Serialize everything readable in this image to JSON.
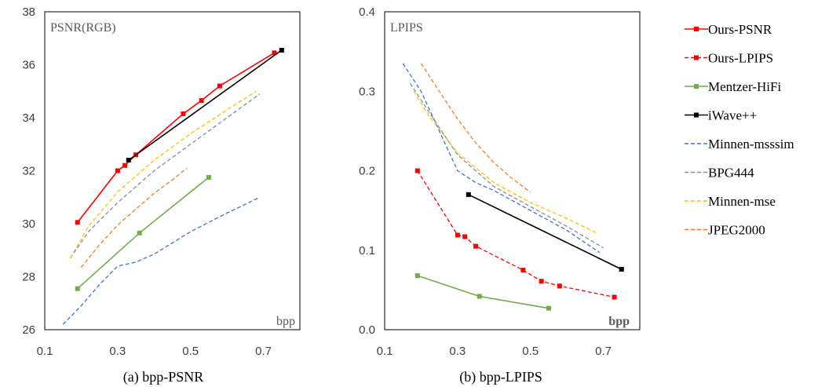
{
  "chart_data": [
    {
      "type": "line",
      "inner_label": "PSNR(RGB)",
      "xlabel": "bpp",
      "caption": "(a) bpp-PSNR",
      "xlim": [
        0.1,
        0.8
      ],
      "ylim": [
        26,
        38
      ],
      "xticks": [
        "0.1",
        "0.3",
        "0.5",
        "0.7"
      ],
      "xtick_values": [
        0.1,
        0.3,
        0.5,
        0.7
      ],
      "yticks": [
        "26",
        "28",
        "30",
        "32",
        "34",
        "36",
        "38"
      ],
      "ytick_values": [
        26,
        28,
        30,
        32,
        34,
        36,
        38
      ],
      "grid": false,
      "series": [
        {
          "name": "Ours-PSNR",
          "color": "#ff0000",
          "style": "solid",
          "marker": true,
          "x": [
            0.19,
            0.3,
            0.32,
            0.35,
            0.48,
            0.53,
            0.58,
            0.73
          ],
          "y": [
            30.05,
            32.0,
            32.2,
            32.6,
            34.15,
            34.65,
            35.2,
            36.45
          ]
        },
        {
          "name": "Ours-LPIPS",
          "color": "#ff0000",
          "style": "dashed",
          "marker": true,
          "x": [],
          "y": []
        },
        {
          "name": "Mentzer-HiFi",
          "color": "#70ad47",
          "style": "solid",
          "marker": true,
          "x": [
            0.19,
            0.36,
            0.55
          ],
          "y": [
            27.55,
            29.65,
            31.75
          ]
        },
        {
          "name": "iWave++",
          "color": "#000000",
          "style": "solid",
          "marker": true,
          "x": [
            0.33,
            0.75
          ],
          "y": [
            32.4,
            36.55
          ]
        },
        {
          "name": "Minnen-msssim",
          "color": "#4472c4",
          "style": "dashed",
          "marker": false,
          "x": [
            0.15,
            0.2,
            0.25,
            0.3,
            0.35,
            0.4,
            0.5,
            0.6,
            0.69
          ],
          "y": [
            26.2,
            26.9,
            27.7,
            28.4,
            28.55,
            28.85,
            29.7,
            30.4,
            31.0
          ]
        },
        {
          "name": "BPG444",
          "color": "#7f8fa6",
          "style": "dashed",
          "marker": false,
          "x": [
            0.17,
            0.22,
            0.3,
            0.4,
            0.5,
            0.6,
            0.69
          ],
          "y": [
            28.7,
            29.7,
            30.8,
            32.0,
            33.0,
            34.0,
            34.9
          ]
        },
        {
          "name": "Minnen-mse",
          "color": "#ffc000",
          "style": "dashed",
          "marker": false,
          "x": [
            0.17,
            0.22,
            0.3,
            0.4,
            0.5,
            0.6,
            0.68
          ],
          "y": [
            28.7,
            29.9,
            31.2,
            32.4,
            33.4,
            34.3,
            35.0
          ]
        },
        {
          "name": "JPEG2000",
          "color": "#ed7d31",
          "style": "dashed",
          "marker": false,
          "x": [
            0.2,
            0.25,
            0.3,
            0.35,
            0.4,
            0.45,
            0.49
          ],
          "y": [
            28.35,
            29.2,
            29.95,
            30.55,
            31.15,
            31.65,
            32.1
          ]
        }
      ]
    },
    {
      "type": "line",
      "inner_label": "LPIPS",
      "xlabel": "bpp",
      "caption": "(b) bpp-LPIPS",
      "xlim": [
        0.1,
        0.8
      ],
      "ylim": [
        0.0,
        0.4
      ],
      "xticks": [
        "0.1",
        "0.3",
        "0.5",
        "0.7"
      ],
      "xtick_values": [
        0.1,
        0.3,
        0.5,
        0.7
      ],
      "yticks": [
        "0.0",
        "0.1",
        "0.2",
        "0.3",
        "0.4"
      ],
      "ytick_values": [
        0.0,
        0.1,
        0.2,
        0.3,
        0.4
      ],
      "grid": false,
      "series": [
        {
          "name": "Ours-PSNR",
          "color": "#ff0000",
          "style": "solid",
          "marker": true,
          "x": [],
          "y": []
        },
        {
          "name": "Ours-LPIPS",
          "color": "#ff0000",
          "style": "dashed",
          "marker": true,
          "x": [
            0.19,
            0.3,
            0.32,
            0.35,
            0.48,
            0.53,
            0.58,
            0.73
          ],
          "y": [
            0.2,
            0.119,
            0.117,
            0.105,
            0.075,
            0.061,
            0.055,
            0.041
          ]
        },
        {
          "name": "Mentzer-HiFi",
          "color": "#70ad47",
          "style": "solid",
          "marker": true,
          "x": [
            0.19,
            0.36,
            0.55
          ],
          "y": [
            0.068,
            0.042,
            0.027
          ]
        },
        {
          "name": "iWave++",
          "color": "#000000",
          "style": "solid",
          "marker": true,
          "x": [
            0.33,
            0.75
          ],
          "y": [
            0.17,
            0.076
          ]
        },
        {
          "name": "Minnen-msssim",
          "color": "#4472c4",
          "style": "dashed",
          "marker": false,
          "x": [
            0.15,
            0.2,
            0.25,
            0.3,
            0.35,
            0.4,
            0.5,
            0.6,
            0.69
          ],
          "y": [
            0.335,
            0.3,
            0.25,
            0.2,
            0.185,
            0.175,
            0.15,
            0.125,
            0.097
          ]
        },
        {
          "name": "BPG444",
          "color": "#7f8fa6",
          "style": "dashed",
          "marker": false,
          "x": [
            0.17,
            0.22,
            0.3,
            0.4,
            0.5,
            0.6,
            0.7
          ],
          "y": [
            0.31,
            0.275,
            0.22,
            0.18,
            0.155,
            0.13,
            0.103
          ]
        },
        {
          "name": "Minnen-mse",
          "color": "#ffc000",
          "style": "dashed",
          "marker": false,
          "x": [
            0.18,
            0.22,
            0.3,
            0.4,
            0.5,
            0.6,
            0.68
          ],
          "y": [
            0.3,
            0.27,
            0.222,
            0.185,
            0.16,
            0.14,
            0.122
          ]
        },
        {
          "name": "JPEG2000",
          "color": "#ed7d31",
          "style": "dashed",
          "marker": false,
          "x": [
            0.2,
            0.25,
            0.3,
            0.35,
            0.4,
            0.45,
            0.5
          ],
          "y": [
            0.335,
            0.3,
            0.265,
            0.235,
            0.21,
            0.19,
            0.173
          ]
        }
      ]
    }
  ],
  "legend": {
    "placement": "right",
    "items": [
      {
        "name": "Ours-PSNR",
        "color": "#ff0000",
        "style": "solid",
        "marker": true
      },
      {
        "name": "Ours-LPIPS",
        "color": "#ff0000",
        "style": "dashed",
        "marker": true
      },
      {
        "name": "Mentzer-HiFi",
        "color": "#70ad47",
        "style": "solid",
        "marker": true
      },
      {
        "name": "iWave++",
        "color": "#000000",
        "style": "solid",
        "marker": true
      },
      {
        "name": "Minnen-msssim",
        "color": "#4472c4",
        "style": "dashed",
        "marker": false
      },
      {
        "name": "BPG444",
        "color": "#7f8fa6",
        "style": "dashed",
        "marker": false
      },
      {
        "name": "Minnen-mse",
        "color": "#ffc000",
        "style": "dashed",
        "marker": false
      },
      {
        "name": "JPEG2000",
        "color": "#ed7d31",
        "style": "dashed",
        "marker": false
      }
    ]
  }
}
